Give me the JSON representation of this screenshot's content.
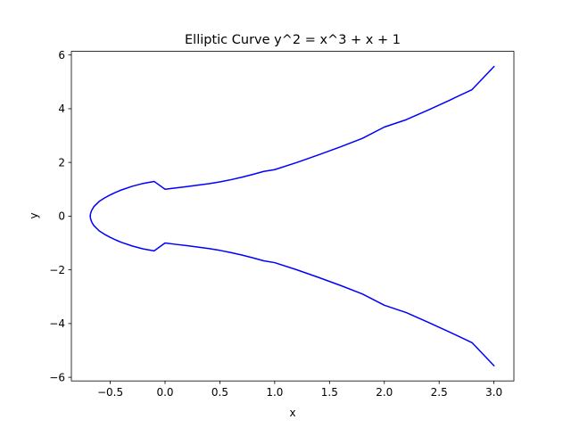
{
  "chart_data": {
    "type": "line",
    "title": "Elliptic Curve y^2 = x^3 + x + 1",
    "xlabel": "x",
    "ylabel": "y",
    "xlim": [
      -0.8545,
      3.182
    ],
    "ylim": [
      -6.1356,
      6.1356
    ],
    "xticks": [
      -0.5,
      0.0,
      0.5,
      1.0,
      1.5,
      2.0,
      2.5,
      3.0
    ],
    "xtick_labels": [
      "−0.5",
      "0.0",
      "0.5",
      "1.0",
      "1.5",
      "2.0",
      "2.5",
      "3.0"
    ],
    "yticks": [
      -6,
      -4,
      -2,
      0,
      2,
      4,
      6
    ],
    "ytick_labels": [
      "−6",
      "−4",
      "−2",
      "0",
      "2",
      "4",
      "6"
    ],
    "grid": false,
    "series": [
      {
        "color": "#0000ff",
        "x": [
          -0.6823,
          -0.68,
          -0.67,
          -0.65,
          -0.6,
          -0.55,
          -0.5,
          -0.45,
          -0.4,
          -0.3,
          -0.2,
          -0.1,
          0.0,
          0.1,
          0.2,
          0.3,
          0.4,
          0.5,
          0.6,
          0.7,
          0.8,
          0.9,
          1.0,
          1.2,
          1.4,
          1.6,
          1.8,
          2.0,
          2.2,
          2.4,
          2.6,
          2.8,
          3.0
        ],
        "y": [
          0.0,
          0.0813,
          0.2102,
          0.351,
          0.5519,
          0.6808,
          0.7906,
          0.8871,
          0.9717,
          1.1112,
          1.2186,
          1.2932,
          1.0,
          1.0512,
          1.099,
          1.153,
          1.2081,
          1.2748,
          1.3563,
          1.4483,
          1.5517,
          1.6643,
          1.7321,
          1.9952,
          2.2812,
          2.5803,
          2.8967,
          3.3166,
          3.5909,
          3.9516,
          4.3249,
          4.7106,
          5.5678
        ]
      },
      {
        "color": "#0000ff",
        "x": [
          -0.6823,
          -0.68,
          -0.67,
          -0.65,
          -0.6,
          -0.55,
          -0.5,
          -0.45,
          -0.4,
          -0.3,
          -0.2,
          -0.1,
          0.0,
          0.1,
          0.2,
          0.3,
          0.4,
          0.5,
          0.6,
          0.7,
          0.8,
          0.9,
          1.0,
          1.2,
          1.4,
          1.6,
          1.8,
          2.0,
          2.2,
          2.4,
          2.6,
          2.8,
          3.0
        ],
        "y": [
          0.0,
          -0.0813,
          -0.2102,
          -0.351,
          -0.5519,
          -0.6808,
          -0.7906,
          -0.8871,
          -0.9717,
          -1.1112,
          -1.2186,
          -1.2932,
          -1.0,
          -1.0512,
          -1.099,
          -1.153,
          -1.2081,
          -1.2748,
          -1.3563,
          -1.4483,
          -1.5517,
          -1.6643,
          -1.7321,
          -1.9952,
          -2.2812,
          -2.5803,
          -2.8967,
          -3.3166,
          -3.5909,
          -3.9516,
          -4.3249,
          -4.7106,
          -5.5678
        ]
      }
    ]
  }
}
